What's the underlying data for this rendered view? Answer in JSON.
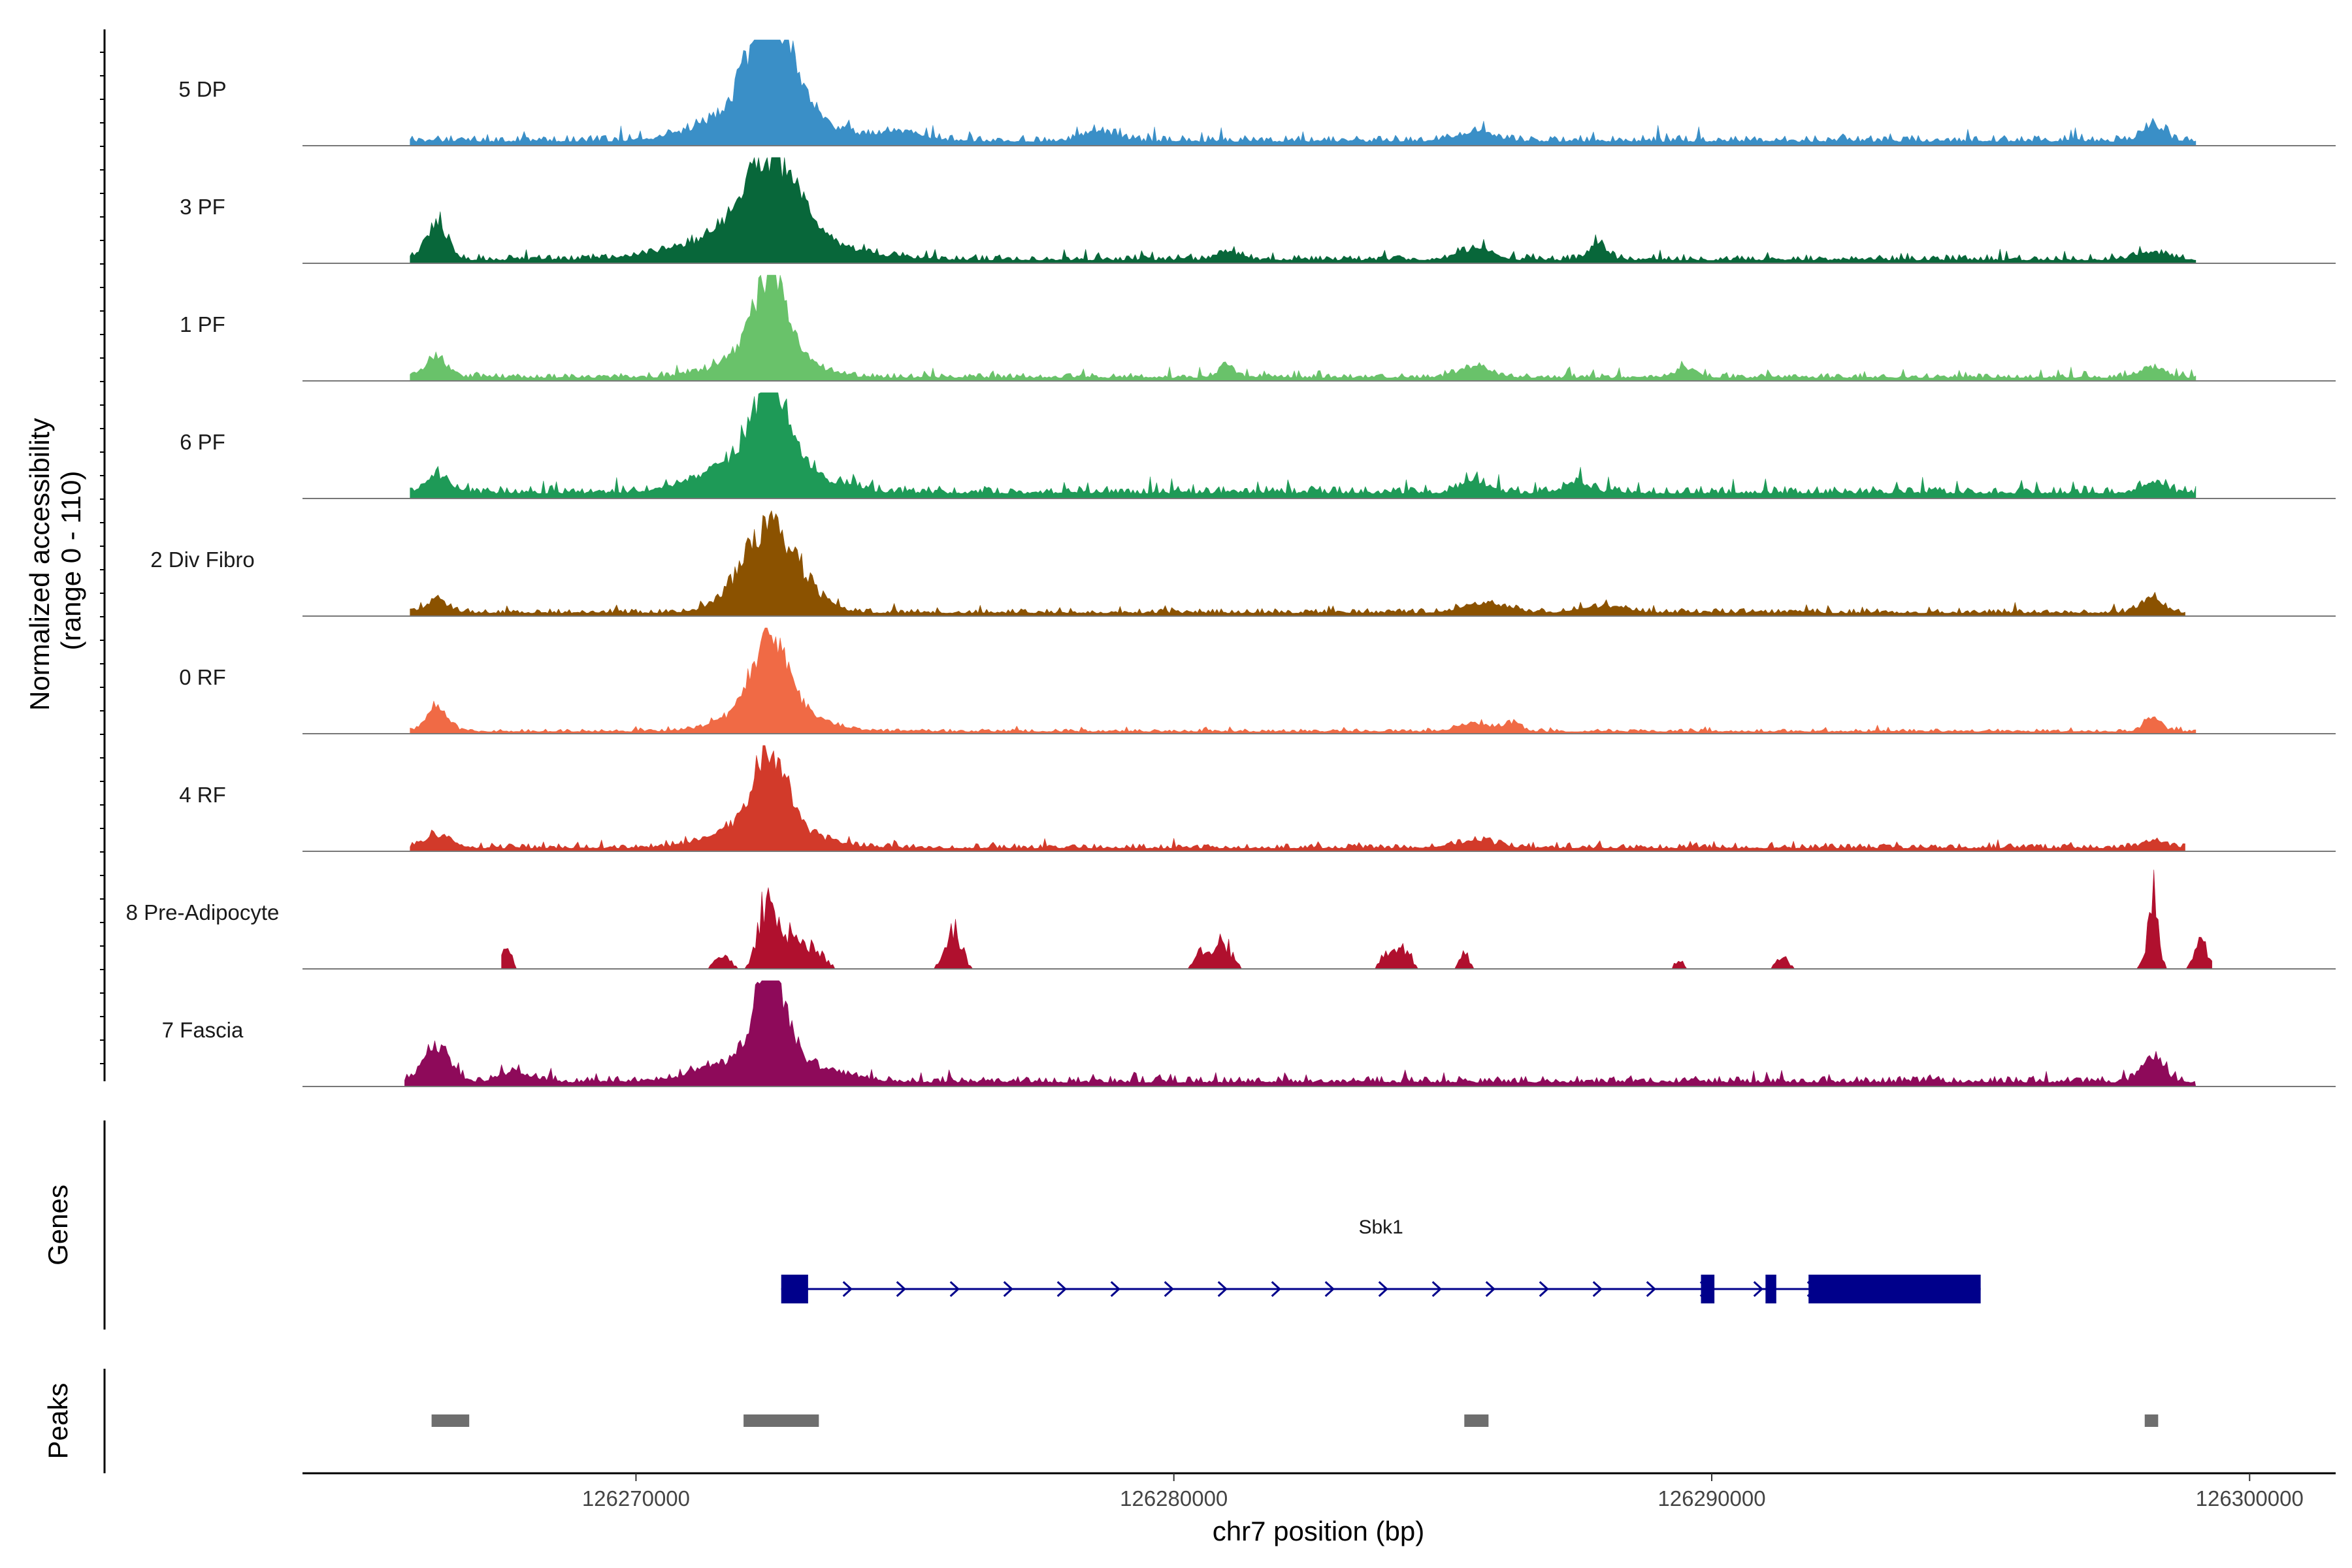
{
  "chart_data": {
    "type": "area",
    "title": "",
    "ylabel": "Normalized accessibility (range 0 - 110)",
    "ylabel_lines": [
      "Normalized accessibility",
      "(range 0 - 110)"
    ],
    "xlabel": "chr7 position (bp)",
    "ylim": [
      0,
      110
    ],
    "xlim": [
      126263800,
      126301600
    ],
    "x_ticks": [
      126270000,
      126280000,
      126290000,
      126300000
    ],
    "x_tick_labels": [
      "126270000",
      "126280000",
      "126290000",
      "126300000"
    ],
    "series": [
      {
        "name": "5 DP",
        "color": "#3A8FC7",
        "range": [
          126265800,
          126299000
        ],
        "base": 4,
        "noise": 7,
        "peaks": [
          [
            126272500,
            100,
            350
          ],
          [
            126272400,
            45,
            900
          ],
          [
            126298200,
            18,
            180
          ],
          [
            126278600,
            10,
            300
          ],
          [
            126285600,
            9,
            350
          ],
          [
            126275000,
            8,
            400
          ]
        ]
      },
      {
        "name": "3 PF",
        "color": "#08673A",
        "range": [
          126265800,
          126299000
        ],
        "base": 3,
        "noise": 6,
        "peaks": [
          [
            126266300,
            40,
            200
          ],
          [
            126272500,
            80,
            500
          ],
          [
            126272300,
            30,
            1200
          ],
          [
            126287900,
            18,
            150
          ],
          [
            126285600,
            12,
            300
          ],
          [
            126281000,
            10,
            200
          ],
          [
            126298200,
            8,
            300
          ]
        ]
      },
      {
        "name": "1 PF",
        "color": "#69C26A",
        "range": [
          126265800,
          126299000
        ],
        "base": 3,
        "noise": 5,
        "peaks": [
          [
            126266300,
            22,
            200
          ],
          [
            126272500,
            80,
            300
          ],
          [
            126272400,
            30,
            700
          ],
          [
            126281000,
            12,
            150
          ],
          [
            126285600,
            11,
            300
          ],
          [
            126289500,
            9,
            200
          ],
          [
            126298200,
            10,
            200
          ]
        ]
      },
      {
        "name": "6 PF",
        "color": "#1E9A57",
        "range": [
          126265800,
          126299000
        ],
        "base": 5,
        "noise": 8,
        "peaks": [
          [
            126266300,
            20,
            200
          ],
          [
            126272500,
            80,
            300
          ],
          [
            126272300,
            40,
            900
          ],
          [
            126285600,
            12,
            250
          ],
          [
            126298200,
            12,
            200
          ],
          [
            126287500,
            10,
            250
          ]
        ]
      },
      {
        "name": "2 Div Fibro",
        "color": "#8B5200",
        "range": [
          126265800,
          126298800
        ],
        "base": 3,
        "noise": 5,
        "peaks": [
          [
            126272500,
            85,
            550
          ],
          [
            126266300,
            14,
            200
          ],
          [
            126285800,
            10,
            400
          ],
          [
            126298200,
            14,
            200
          ],
          [
            126288000,
            7,
            400
          ]
        ]
      },
      {
        "name": "0 RF",
        "color": "#F06A45",
        "range": [
          126265800,
          126299000
        ],
        "base": 2,
        "noise": 3,
        "peaks": [
          [
            126272500,
            75,
            300
          ],
          [
            126272500,
            30,
            700
          ],
          [
            126266300,
            25,
            200
          ],
          [
            126298200,
            15,
            150
          ],
          [
            126285600,
            8,
            300
          ],
          [
            126286300,
            9,
            150
          ]
        ]
      },
      {
        "name": "4 RF",
        "color": "#D23A2A",
        "range": [
          126265800,
          126298800
        ],
        "base": 3,
        "noise": 5,
        "peaks": [
          [
            126272500,
            70,
            300
          ],
          [
            126272400,
            28,
            800
          ],
          [
            126266300,
            13,
            250
          ],
          [
            126285600,
            7,
            400
          ],
          [
            126298200,
            8,
            200
          ]
        ]
      },
      {
        "name": "8 Pre-Adipocyte",
        "color": "#B0102E",
        "range": [
          126267500,
          126299300
        ],
        "base": 0,
        "noise": 0,
        "sparse": true,
        "peaks": [
          [
            126272400,
            80,
            140
          ],
          [
            126272800,
            45,
            200
          ],
          [
            126273300,
            25,
            200
          ],
          [
            126271600,
            15,
            150
          ],
          [
            126275900,
            55,
            140
          ],
          [
            126280900,
            35,
            160
          ],
          [
            126280500,
            20,
            120
          ],
          [
            126284000,
            22,
            130
          ],
          [
            126284300,
            25,
            110
          ],
          [
            126285400,
            20,
            80
          ],
          [
            126298200,
            90,
            100
          ],
          [
            126299100,
            32,
            120
          ],
          [
            126291300,
            15,
            110
          ],
          [
            126267600,
            22,
            100
          ],
          [
            126289400,
            12,
            80
          ]
        ]
      },
      {
        "name": "7 Fascia",
        "color": "#8E0A5A",
        "range": [
          126265700,
          126299000
        ],
        "base": 4,
        "noise": 7,
        "peaks": [
          [
            126272500,
            95,
            260
          ],
          [
            126272400,
            30,
            900
          ],
          [
            126266300,
            35,
            250
          ],
          [
            126298200,
            25,
            200
          ],
          [
            126267800,
            10,
            300
          ]
        ]
      }
    ],
    "genes": [
      {
        "name": "Sbk1",
        "strand": "+",
        "start": 126272700,
        "end": 126295000,
        "exons": [
          [
            126272700,
            126273200
          ],
          [
            126289800,
            126290050
          ],
          [
            126291000,
            126291200
          ],
          [
            126291800,
            126295000
          ]
        ]
      }
    ],
    "peak_regions": [
      [
        126266200,
        126266900
      ],
      [
        126272000,
        126273400
      ],
      [
        126285400,
        126285850
      ],
      [
        126298050,
        126298300
      ]
    ],
    "track_titles": [
      "Genes",
      "Peaks"
    ]
  }
}
